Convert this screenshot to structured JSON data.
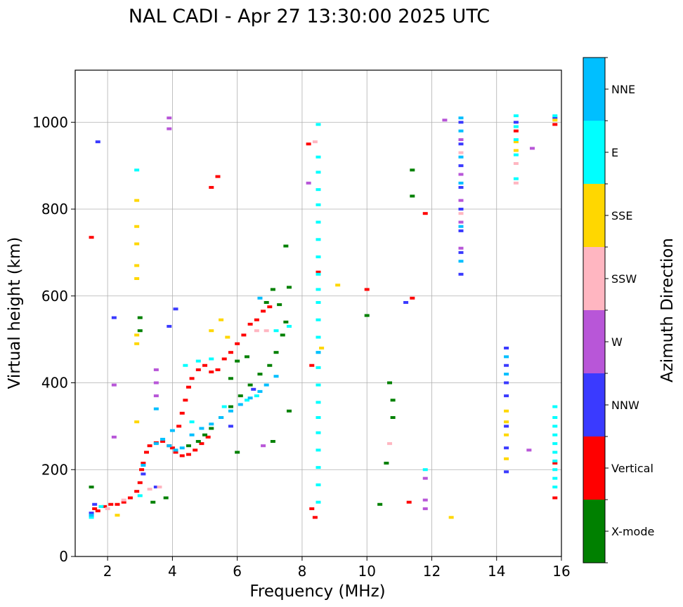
{
  "chart_data": {
    "type": "scatter",
    "title": "NAL CADI - Apr 27 13:30:00 2025 UTC",
    "xlabel": "Frequency (MHz)",
    "ylabel": "Virtual height (km)",
    "xlim": [
      1,
      16
    ],
    "ylim": [
      0,
      1120
    ],
    "xticks": [
      2,
      4,
      6,
      8,
      10,
      12,
      14,
      16
    ],
    "yticks": [
      0,
      200,
      400,
      600,
      800,
      1000
    ],
    "grid": true,
    "colorbar": {
      "label": "Azimuth Direction",
      "categories": [
        {
          "name": "X-mode",
          "color": "#008000"
        },
        {
          "name": "Vertical",
          "color": "#ff0000"
        },
        {
          "name": "NNW",
          "color": "#3a3aff"
        },
        {
          "name": "W",
          "color": "#b856d8"
        },
        {
          "name": "SSW",
          "color": "#ffb6c1"
        },
        {
          "name": "SSE",
          "color": "#ffd700"
        },
        {
          "name": "E",
          "color": "#00ffff"
        },
        {
          "name": "NNE",
          "color": "#00bfff"
        }
      ]
    },
    "series": [
      {
        "name": "Vertical",
        "points": [
          [
            1.6,
            110
          ],
          [
            1.7,
            105
          ],
          [
            1.9,
            115
          ],
          [
            2.1,
            120
          ],
          [
            2.3,
            120
          ],
          [
            2.5,
            125
          ],
          [
            2.7,
            135
          ],
          [
            2.9,
            150
          ],
          [
            3.0,
            170
          ],
          [
            3.05,
            200
          ],
          [
            3.1,
            215
          ],
          [
            3.2,
            240
          ],
          [
            3.3,
            255
          ],
          [
            3.5,
            262
          ],
          [
            3.7,
            265
          ],
          [
            3.9,
            255
          ],
          [
            4.0,
            250
          ],
          [
            4.1,
            240
          ],
          [
            4.3,
            232
          ],
          [
            4.5,
            235
          ],
          [
            4.7,
            245
          ],
          [
            4.9,
            260
          ],
          [
            5.1,
            275
          ],
          [
            4.2,
            300
          ],
          [
            4.3,
            330
          ],
          [
            4.4,
            360
          ],
          [
            4.5,
            390
          ],
          [
            4.6,
            410
          ],
          [
            4.8,
            430
          ],
          [
            5.0,
            440
          ],
          [
            5.2,
            425
          ],
          [
            5.4,
            430
          ],
          [
            5.6,
            455
          ],
          [
            5.8,
            470
          ],
          [
            6.0,
            490
          ],
          [
            6.2,
            510
          ],
          [
            6.4,
            535
          ],
          [
            6.6,
            545
          ],
          [
            6.8,
            565
          ],
          [
            7.0,
            575
          ],
          [
            8.2,
            950
          ],
          [
            8.3,
            440
          ],
          [
            8.3,
            110
          ],
          [
            8.4,
            90
          ],
          [
            8.5,
            655
          ],
          [
            10.0,
            615
          ],
          [
            11.3,
            125
          ],
          [
            11.4,
            595
          ],
          [
            11.8,
            790
          ],
          [
            5.4,
            875
          ],
          [
            5.2,
            850
          ],
          [
            1.5,
            735
          ],
          [
            14.6,
            980
          ],
          [
            15.8,
            995
          ],
          [
            15.8,
            215
          ],
          [
            15.8,
            135
          ]
        ]
      },
      {
        "name": "X-mode",
        "points": [
          [
            1.5,
            160
          ],
          [
            3.4,
            125
          ],
          [
            3.8,
            135
          ],
          [
            4.5,
            255
          ],
          [
            4.8,
            265
          ],
          [
            5.0,
            280
          ],
          [
            5.2,
            295
          ],
          [
            5.5,
            320
          ],
          [
            5.8,
            345
          ],
          [
            6.1,
            370
          ],
          [
            6.4,
            395
          ],
          [
            6.7,
            420
          ],
          [
            7.0,
            440
          ],
          [
            7.2,
            470
          ],
          [
            7.4,
            510
          ],
          [
            7.5,
            540
          ],
          [
            7.3,
            580
          ],
          [
            7.1,
            615
          ],
          [
            6.9,
            585
          ],
          [
            7.6,
            620
          ],
          [
            7.5,
            715
          ],
          [
            6.0,
            450
          ],
          [
            6.3,
            460
          ],
          [
            5.8,
            410
          ],
          [
            7.1,
            265
          ],
          [
            6.0,
            240
          ],
          [
            7.6,
            335
          ],
          [
            10.0,
            555
          ],
          [
            10.4,
            120
          ],
          [
            10.6,
            215
          ],
          [
            10.7,
            400
          ],
          [
            10.8,
            320
          ],
          [
            10.8,
            360
          ],
          [
            11.4,
            890
          ],
          [
            11.4,
            830
          ],
          [
            3.0,
            550
          ],
          [
            3.0,
            520
          ]
        ]
      },
      {
        "name": "NNW",
        "points": [
          [
            1.5,
            100
          ],
          [
            1.6,
            120
          ],
          [
            1.7,
            955
          ],
          [
            2.2,
            550
          ],
          [
            3.1,
            190
          ],
          [
            3.5,
            160
          ],
          [
            4.1,
            570
          ],
          [
            3.9,
            530
          ],
          [
            6.5,
            385
          ],
          [
            5.8,
            300
          ],
          [
            11.2,
            585
          ],
          [
            12.9,
            1000
          ],
          [
            12.9,
            950
          ],
          [
            12.9,
            900
          ],
          [
            12.9,
            850
          ],
          [
            12.9,
            800
          ],
          [
            12.9,
            750
          ],
          [
            12.9,
            700
          ],
          [
            12.9,
            650
          ],
          [
            14.3,
            480
          ],
          [
            14.3,
            440
          ],
          [
            14.3,
            400
          ],
          [
            14.3,
            370
          ],
          [
            14.3,
            300
          ],
          [
            14.3,
            250
          ],
          [
            14.3,
            195
          ],
          [
            14.6,
            1000
          ],
          [
            15.8,
            1010
          ]
        ]
      },
      {
        "name": "W",
        "points": [
          [
            2.2,
            395
          ],
          [
            2.2,
            275
          ],
          [
            3.5,
            430
          ],
          [
            3.5,
            400
          ],
          [
            3.5,
            370
          ],
          [
            3.9,
            1010
          ],
          [
            3.9,
            985
          ],
          [
            8.2,
            860
          ],
          [
            11.8,
            130
          ],
          [
            11.8,
            110
          ],
          [
            11.8,
            180
          ],
          [
            12.4,
            1005
          ],
          [
            12.9,
            960
          ],
          [
            12.9,
            880
          ],
          [
            12.9,
            820
          ],
          [
            12.9,
            770
          ],
          [
            12.9,
            710
          ],
          [
            15.1,
            940
          ],
          [
            15.0,
            245
          ],
          [
            6.8,
            255
          ]
        ]
      },
      {
        "name": "SSW",
        "points": [
          [
            2.0,
            110
          ],
          [
            2.5,
            130
          ],
          [
            3.3,
            155
          ],
          [
            3.6,
            160
          ],
          [
            6.6,
            520
          ],
          [
            6.9,
            520
          ],
          [
            8.4,
            955
          ],
          [
            10.7,
            260
          ],
          [
            12.9,
            930
          ],
          [
            12.9,
            790
          ],
          [
            14.6,
            905
          ],
          [
            14.6,
            860
          ]
        ]
      },
      {
        "name": "SSE",
        "points": [
          [
            2.3,
            95
          ],
          [
            2.9,
            820
          ],
          [
            2.9,
            760
          ],
          [
            2.9,
            720
          ],
          [
            2.9,
            670
          ],
          [
            2.9,
            640
          ],
          [
            2.9,
            510
          ],
          [
            2.9,
            490
          ],
          [
            2.9,
            310
          ],
          [
            5.2,
            520
          ],
          [
            5.5,
            545
          ],
          [
            5.7,
            505
          ],
          [
            8.6,
            480
          ],
          [
            9.1,
            625
          ],
          [
            12.6,
            90
          ],
          [
            14.3,
            335
          ],
          [
            14.3,
            310
          ],
          [
            14.3,
            280
          ],
          [
            14.3,
            225
          ],
          [
            14.6,
            955
          ],
          [
            14.6,
            935
          ],
          [
            15.8,
            1005
          ]
        ]
      },
      {
        "name": "E",
        "points": [
          [
            1.5,
            90
          ],
          [
            1.8,
            115
          ],
          [
            2.9,
            890
          ],
          [
            3.0,
            140
          ],
          [
            4.4,
            440
          ],
          [
            4.6,
            310
          ],
          [
            4.8,
            450
          ],
          [
            5.2,
            455
          ],
          [
            5.6,
            345
          ],
          [
            6.3,
            360
          ],
          [
            6.6,
            370
          ],
          [
            7.2,
            520
          ],
          [
            7.6,
            530
          ],
          [
            8.5,
            995
          ],
          [
            8.5,
            920
          ],
          [
            8.5,
            885
          ],
          [
            8.5,
            845
          ],
          [
            8.5,
            810
          ],
          [
            8.5,
            770
          ],
          [
            8.5,
            730
          ],
          [
            8.5,
            690
          ],
          [
            8.5,
            650
          ],
          [
            8.5,
            615
          ],
          [
            8.5,
            585
          ],
          [
            8.5,
            545
          ],
          [
            8.5,
            505
          ],
          [
            8.5,
            470
          ],
          [
            8.5,
            435
          ],
          [
            8.5,
            395
          ],
          [
            8.5,
            355
          ],
          [
            8.5,
            320
          ],
          [
            8.5,
            285
          ],
          [
            8.5,
            245
          ],
          [
            8.5,
            205
          ],
          [
            8.5,
            165
          ],
          [
            8.5,
            125
          ],
          [
            14.6,
            1015
          ],
          [
            14.6,
            990
          ],
          [
            14.6,
            960
          ],
          [
            14.6,
            925
          ],
          [
            14.6,
            870
          ],
          [
            15.8,
            1015
          ],
          [
            15.8,
            345
          ],
          [
            15.8,
            320
          ],
          [
            15.8,
            300
          ],
          [
            15.8,
            280
          ],
          [
            15.8,
            260
          ],
          [
            15.8,
            240
          ],
          [
            15.8,
            220
          ],
          [
            15.8,
            200
          ],
          [
            15.8,
            180
          ],
          [
            15.8,
            160
          ],
          [
            11.8,
            200
          ]
        ]
      },
      {
        "name": "NNE",
        "points": [
          [
            1.5,
            95
          ],
          [
            3.1,
            210
          ],
          [
            3.5,
            260
          ],
          [
            3.7,
            270
          ],
          [
            3.9,
            255
          ],
          [
            4.1,
            245
          ],
          [
            4.3,
            250
          ],
          [
            4.6,
            280
          ],
          [
            4.9,
            295
          ],
          [
            5.2,
            305
          ],
          [
            5.5,
            320
          ],
          [
            5.8,
            335
          ],
          [
            6.1,
            350
          ],
          [
            6.4,
            365
          ],
          [
            6.7,
            380
          ],
          [
            6.9,
            395
          ],
          [
            7.2,
            415
          ],
          [
            3.5,
            340
          ],
          [
            4.0,
            290
          ],
          [
            6.7,
            595
          ],
          [
            8.5,
            470
          ],
          [
            12.9,
            1010
          ],
          [
            12.9,
            980
          ],
          [
            12.9,
            920
          ],
          [
            12.9,
            860
          ],
          [
            12.9,
            760
          ],
          [
            12.9,
            680
          ],
          [
            14.3,
            420
          ],
          [
            14.3,
            460
          ]
        ]
      }
    ]
  }
}
